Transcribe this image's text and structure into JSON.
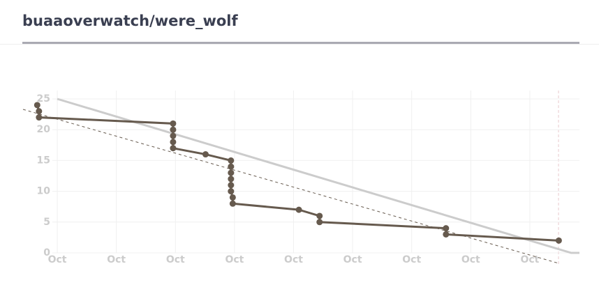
{
  "chart_data": {
    "type": "line",
    "title": "buaaoverwatch/were_wolf",
    "xlim": [
      -0.58,
      8.84
    ],
    "ylim": [
      0,
      25
    ],
    "yticks": [
      0,
      5,
      10,
      15,
      20,
      25
    ],
    "xticks": [
      {
        "value": 0,
        "label": "Oct"
      },
      {
        "value": 1,
        "label": "Oct"
      },
      {
        "value": 2,
        "label": "Oct"
      },
      {
        "value": 3,
        "label": "Oct"
      },
      {
        "value": 4,
        "label": "Oct"
      },
      {
        "value": 5,
        "label": "Oct"
      },
      {
        "value": 6,
        "label": "Oct"
      },
      {
        "value": 7,
        "label": "Oct"
      },
      {
        "value": 8,
        "label": "Oct"
      }
    ],
    "grid": true,
    "series": [
      {
        "color": "#cccccc",
        "x": [
          0,
          8.7,
          8.84
        ],
        "values": [
          25,
          0,
          0
        ],
        "style": "solid",
        "markers": false
      },
      {
        "color": "#665a4e",
        "x": [
          -0.58,
          8.49
        ],
        "values": [
          23.3,
          -1.7
        ],
        "style": "dashed",
        "markers": false
      },
      {
        "color": "#665a4e",
        "x": [
          -0.34,
          -0.31,
          -0.31,
          1.96,
          1.96,
          1.96,
          1.96,
          1.96,
          2.51,
          2.94,
          2.94,
          2.94,
          2.94,
          2.94,
          2.94,
          2.97,
          2.97,
          4.09,
          4.44,
          4.44,
          6.58,
          6.58,
          8.49
        ],
        "values": [
          24,
          23,
          22,
          21,
          20,
          19,
          18,
          17,
          16,
          15,
          14,
          13,
          12,
          11,
          10,
          9,
          8,
          7,
          6,
          5,
          4,
          3,
          2
        ],
        "style": "solid",
        "markers": true
      }
    ]
  }
}
